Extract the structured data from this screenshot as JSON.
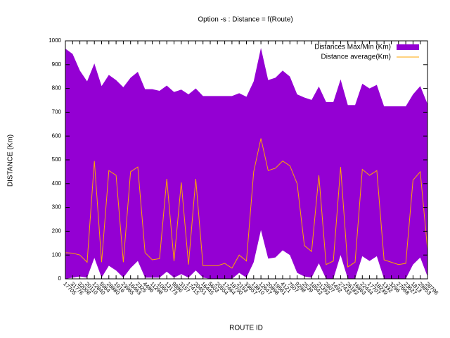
{
  "chart_data": {
    "type": "area_range_line",
    "title": "Option -s : Distance = f(Route)",
    "x_label": "ROUTE ID",
    "y_label": "DISTANCE (Km)",
    "categories": [
      "17705",
      "31776",
      "32008",
      "20110",
      "12840",
      "5964",
      "28880",
      "1916",
      "23965",
      "16463",
      "2325",
      "4486",
      "11298",
      "1060",
      "13173",
      "9886",
      "3157",
      "17415",
      "20451",
      "16445",
      "5603",
      "20554",
      "17464",
      "18790",
      "2153",
      "33657",
      "13810",
      "12647",
      "20898",
      "19561",
      "4121",
      "7507",
      "9298",
      "2539",
      "18542",
      "21392",
      "2807",
      "1492",
      "27433",
      "26182",
      "16863",
      "22444",
      "17707",
      "18239",
      "1332",
      "3296",
      "27668",
      "23627",
      "1813",
      "29853",
      "28796"
    ],
    "series": [
      {
        "name": "Distances Max/Min (Km)",
        "type": "range",
        "color": "#9400d3",
        "max": [
          967,
          945,
          875,
          830,
          905,
          810,
          857,
          835,
          805,
          845,
          870,
          797,
          797,
          790,
          812,
          785,
          795,
          775,
          800,
          768,
          768,
          768,
          768,
          768,
          780,
          765,
          830,
          970,
          835,
          845,
          875,
          850,
          775,
          762,
          752,
          808,
          743,
          743,
          838,
          730,
          730,
          820,
          800,
          815,
          725,
          725,
          725,
          725,
          775,
          810,
          735
        ],
        "min": [
          0,
          5,
          10,
          5,
          88,
          5,
          55,
          35,
          5,
          45,
          75,
          5,
          5,
          5,
          30,
          5,
          20,
          5,
          35,
          5,
          0,
          0,
          0,
          0,
          25,
          5,
          70,
          205,
          85,
          90,
          120,
          100,
          25,
          10,
          5,
          65,
          0,
          0,
          100,
          0,
          0,
          95,
          75,
          95,
          0,
          0,
          0,
          0,
          60,
          90,
          10
        ]
      },
      {
        "name": "Distance average(Km)",
        "type": "line",
        "color": "#ffa500",
        "values": [
          110,
          108,
          100,
          70,
          495,
          70,
          455,
          435,
          70,
          450,
          470,
          110,
          80,
          85,
          420,
          75,
          405,
          60,
          420,
          55,
          55,
          55,
          65,
          45,
          100,
          75,
          450,
          590,
          455,
          465,
          495,
          475,
          400,
          140,
          115,
          435,
          60,
          75,
          470,
          50,
          70,
          460,
          435,
          455,
          80,
          70,
          60,
          65,
          415,
          450,
          125
        ]
      }
    ],
    "ylim": [
      0,
      1000
    ],
    "yticks": [
      0,
      100,
      200,
      300,
      400,
      500,
      600,
      700,
      800,
      900,
      1000
    ],
    "legend": "top-right"
  }
}
